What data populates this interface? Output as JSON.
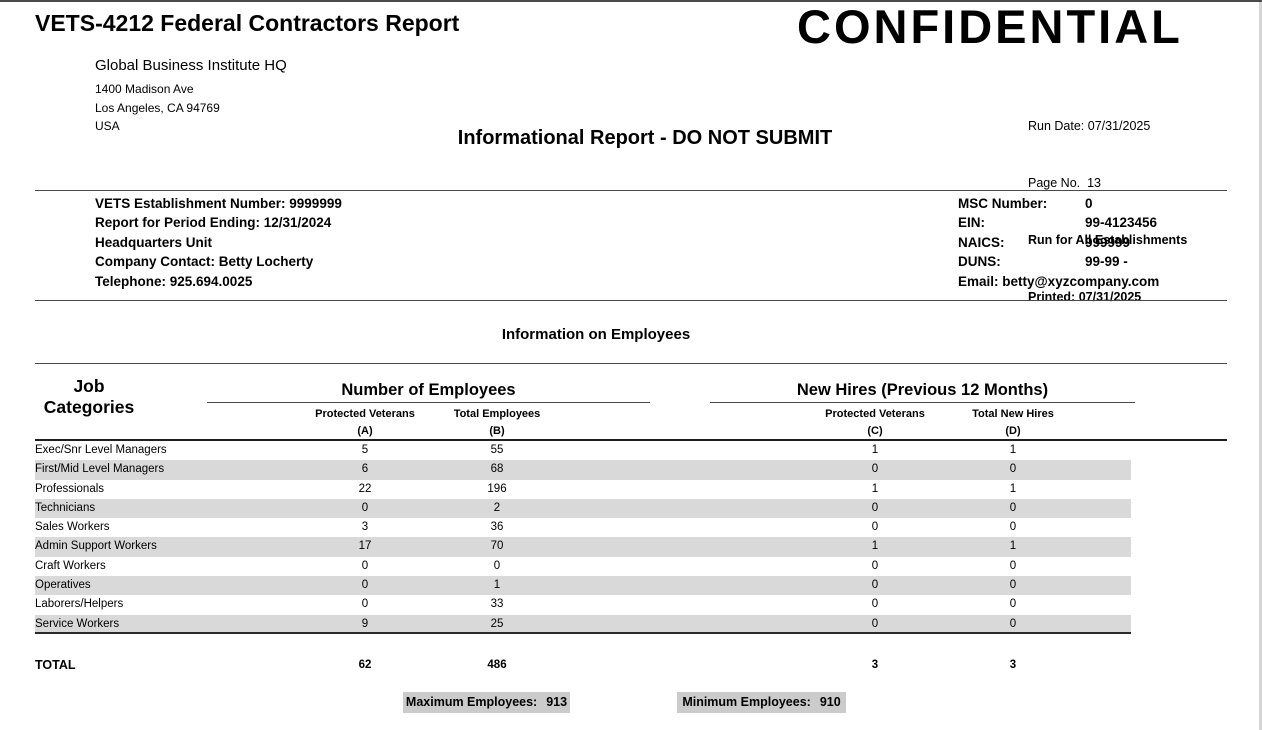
{
  "header": {
    "title": "VETS-4212 Federal Contractors Report",
    "confidential": "CONFIDENTIAL",
    "company": {
      "name": "Global Business Institute HQ",
      "address1": "1400 Madison Ave",
      "address2": "Los Angeles, CA 94769",
      "country": "USA"
    },
    "run_info": {
      "run_date": "Run Date: 07/31/2025",
      "page_no": "Page No.  13",
      "run_for": "Run for All Establishments",
      "printed": "Printed: 07/31/2025"
    },
    "informational": "Informational Report - DO NOT SUBMIT"
  },
  "establishment": {
    "left_lines": [
      "VETS Establishment Number: 9999999",
      "Report for Period Ending: 12/31/2024",
      "Headquarters Unit",
      "Company Contact: Betty Locherty",
      "Telephone: 925.694.0025"
    ],
    "right_rows": [
      {
        "label": "MSC Number:",
        "value": "0"
      },
      {
        "label": "EIN:",
        "value": "99-4123456"
      },
      {
        "label": "NAICS:",
        "value": "999999"
      },
      {
        "label": "DUNS:",
        "value": "99-99 -"
      }
    ],
    "email_line": "Email: betty@xyzcompany.com"
  },
  "section_title": "Information on Employees",
  "table": {
    "job_header_line1": "Job",
    "job_header_line2": "Categories",
    "group1": "Number of Employees",
    "group2": "New Hires (Previous 12 Months)",
    "col_a_label": "Protected Veterans",
    "col_a_letter": "(A)",
    "col_b_label": "Total Employees",
    "col_b_letter": "(B)",
    "col_c_label": "Protected Veterans",
    "col_c_letter": "(C)",
    "col_d_label": "Total New Hires",
    "col_d_letter": "(D)",
    "rows": [
      {
        "category": "Exec/Snr Level Managers",
        "a": "5",
        "b": "55",
        "c": "1",
        "d": "1"
      },
      {
        "category": "First/Mid Level Managers",
        "a": "6",
        "b": "68",
        "c": "0",
        "d": "0"
      },
      {
        "category": "Professionals",
        "a": "22",
        "b": "196",
        "c": "1",
        "d": "1"
      },
      {
        "category": "Technicians",
        "a": "0",
        "b": "2",
        "c": "0",
        "d": "0"
      },
      {
        "category": "Sales Workers",
        "a": "3",
        "b": "36",
        "c": "0",
        "d": "0"
      },
      {
        "category": "Admin Support Workers",
        "a": "17",
        "b": "70",
        "c": "1",
        "d": "1"
      },
      {
        "category": "Craft Workers",
        "a": "0",
        "b": "0",
        "c": "0",
        "d": "0"
      },
      {
        "category": "Operatives",
        "a": "0",
        "b": "1",
        "c": "0",
        "d": "0"
      },
      {
        "category": "Laborers/Helpers",
        "a": "0",
        "b": "33",
        "c": "0",
        "d": "0"
      },
      {
        "category": "Service Workers",
        "a": "9",
        "b": "25",
        "c": "0",
        "d": "0"
      }
    ],
    "total": {
      "label": "TOTAL",
      "a": "62",
      "b": "486",
      "c": "3",
      "d": "3"
    }
  },
  "footer": {
    "max_label": "Maximum Employees:",
    "max_value": "913",
    "min_label": "Minimum Employees:",
    "min_value": "910"
  },
  "colors": {
    "row_stripe": "#d9d9d9",
    "highlight_box": "#cbcbcb",
    "rule_line": "#4a4a4a"
  }
}
